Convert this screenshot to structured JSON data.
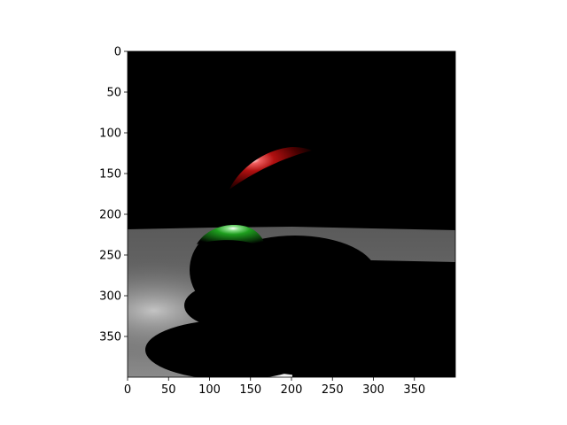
{
  "chart_data": {
    "type": "heatmap",
    "title": "",
    "xlabel": "",
    "ylabel": "",
    "image_width": 400,
    "image_height": 400,
    "xlim": [
      0,
      400
    ],
    "ylim": [
      400,
      0
    ],
    "xticks": [
      0,
      50,
      100,
      150,
      200,
      250,
      300,
      350
    ],
    "yticks": [
      0,
      50,
      100,
      150,
      200,
      250,
      300,
      350
    ],
    "grid": false,
    "colors": {
      "background": "#000000",
      "floor_light": "#bdbdbd",
      "floor_mid": "#6e6e6e",
      "red_sphere": "#c81414",
      "green_sphere": "#1e9e1e",
      "highlight": "#ffffff"
    }
  }
}
